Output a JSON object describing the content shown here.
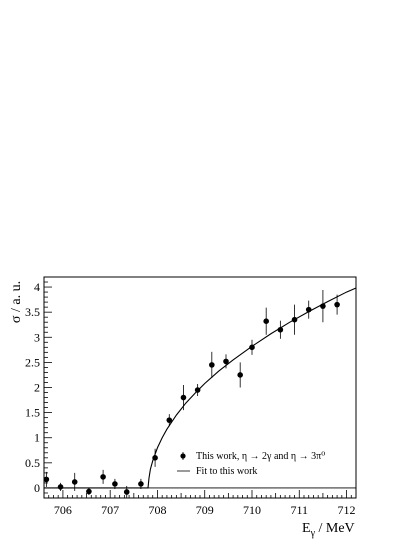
{
  "chart_data": {
    "type": "scatter",
    "xlabel": "E",
    "xlabel_sub": "γ",
    "xlabel_suffix": " / MeV",
    "ylabel": "σ / a. u.",
    "xlim": [
      705.6,
      712.2
    ],
    "ylim": [
      -0.2,
      4.2
    ],
    "x_ticks": [
      706,
      707,
      708,
      709,
      710,
      711,
      712
    ],
    "y_ticks": [
      0,
      0.5,
      1,
      1.5,
      2,
      2.5,
      3,
      3.5,
      4
    ],
    "x_tick_labels": [
      "706",
      "707",
      "708",
      "709",
      "710",
      "711",
      "712"
    ],
    "y_tick_labels": [
      "0",
      "0.5",
      "1",
      "1.5",
      "2",
      "2.5",
      "3",
      "3.5",
      "4"
    ],
    "legend_position": "bottom-right",
    "series": [
      {
        "name": "This work, η → 2γ and η → 3π⁰",
        "kind": "points",
        "color": "#000000",
        "points": [
          {
            "x": 705.65,
            "y": 0.17,
            "err": 0.15
          },
          {
            "x": 705.95,
            "y": 0.02,
            "err": 0.08
          },
          {
            "x": 706.25,
            "y": 0.12,
            "err": 0.18
          },
          {
            "x": 706.55,
            "y": -0.07,
            "err": 0.07
          },
          {
            "x": 706.85,
            "y": 0.22,
            "err": 0.14
          },
          {
            "x": 707.1,
            "y": 0.08,
            "err": 0.1
          },
          {
            "x": 707.35,
            "y": -0.08,
            "err": 0.12
          },
          {
            "x": 707.65,
            "y": 0.08,
            "err": 0.1
          },
          {
            "x": 707.95,
            "y": 0.6,
            "err": 0.18
          },
          {
            "x": 708.25,
            "y": 1.35,
            "err": 0.12
          },
          {
            "x": 708.55,
            "y": 1.8,
            "err": 0.25
          },
          {
            "x": 708.85,
            "y": 1.95,
            "err": 0.12
          },
          {
            "x": 709.15,
            "y": 2.45,
            "err": 0.26
          },
          {
            "x": 709.45,
            "y": 2.52,
            "err": 0.14
          },
          {
            "x": 709.75,
            "y": 2.25,
            "err": 0.25
          },
          {
            "x": 710.0,
            "y": 2.8,
            "err": 0.15
          },
          {
            "x": 710.3,
            "y": 3.32,
            "err": 0.27
          },
          {
            "x": 710.6,
            "y": 3.15,
            "err": 0.18
          },
          {
            "x": 710.9,
            "y": 3.35,
            "err": 0.3
          },
          {
            "x": 711.2,
            "y": 3.55,
            "err": 0.18
          },
          {
            "x": 711.5,
            "y": 3.62,
            "err": 0.32
          },
          {
            "x": 711.8,
            "y": 3.65,
            "err": 0.2
          }
        ]
      },
      {
        "name": "Fit to this work",
        "kind": "line",
        "color": "#000000",
        "x": [
          705.6,
          707.8,
          707.82,
          707.85,
          707.9,
          708.0,
          708.1,
          708.2,
          708.4,
          708.6,
          708.8,
          709.0,
          709.3,
          709.6,
          710.0,
          710.4,
          710.8,
          711.2,
          711.6,
          712.0,
          712.2
        ],
        "y": [
          0,
          0,
          0.19,
          0.37,
          0.54,
          0.8,
          1.0,
          1.17,
          1.45,
          1.69,
          1.89,
          2.08,
          2.33,
          2.55,
          2.82,
          3.07,
          3.3,
          3.51,
          3.71,
          3.9,
          3.98
        ]
      }
    ]
  }
}
